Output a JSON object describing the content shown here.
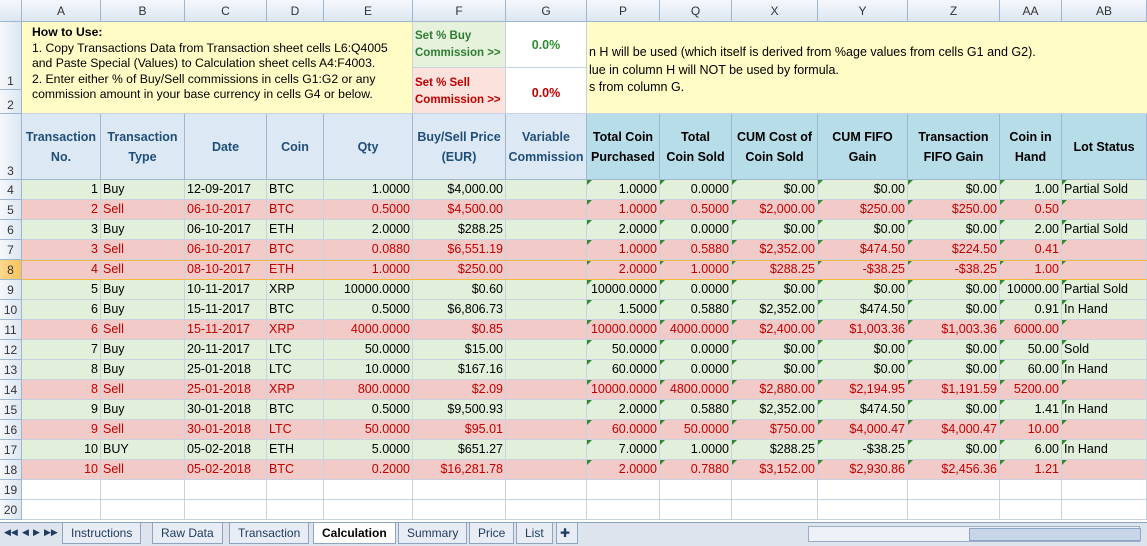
{
  "columns": [
    "A",
    "B",
    "C",
    "D",
    "E",
    "F",
    "G",
    "P",
    "Q",
    "X",
    "Y",
    "Z",
    "AA",
    "AB"
  ],
  "row_numbers": [
    "1",
    "2",
    "3",
    "4",
    "5",
    "6",
    "7",
    "8",
    "9",
    "10",
    "11",
    "12",
    "13",
    "14",
    "15",
    "16",
    "17",
    "18",
    "19",
    "20"
  ],
  "selected_row": "8",
  "instructions": {
    "title": "How to Use:",
    "line1": "1. Copy Transactions Data from Transaction sheet cells L6:Q4005",
    "line2": "and Paste Special (Values) to Calculation sheet cells A4:F4003.",
    "line3": "2. Enter either % of Buy/Sell commissions in cells G1:G2 or any",
    "line4": "commission amount in your base currency in cells G4 or below."
  },
  "commission": {
    "buy_label_1": "Set % Buy",
    "buy_label_2": "Commission >>",
    "buy_value": "0.0%",
    "sell_label_1": "Set % Sell",
    "sell_label_2": "Commission >>",
    "sell_value": "0.0%"
  },
  "note": {
    "line1": "n H will be used (which itself is derived from %age values from cells G1 and G2).",
    "line2": "lue in column H will NOT be used by formula.",
    "line3": "s from column G."
  },
  "headers": [
    [
      "Transaction",
      "No."
    ],
    [
      "Transaction",
      "Type"
    ],
    [
      "Date",
      ""
    ],
    [
      "Coin",
      ""
    ],
    [
      "Qty",
      ""
    ],
    [
      "Buy/Sell Price",
      "(EUR)"
    ],
    [
      "Variable",
      "Commission"
    ],
    [
      "Total Coin",
      "Purchased"
    ],
    [
      "Total",
      "Coin Sold"
    ],
    [
      "CUM Cost of",
      "Coin Sold"
    ],
    [
      "CUM FIFO",
      "Gain"
    ],
    [
      "Transaction",
      "FIFO Gain"
    ],
    [
      "Coin in",
      "Hand"
    ],
    [
      "Lot Status",
      ""
    ]
  ],
  "rows": [
    {
      "type": "buy",
      "cells": [
        "1",
        "Buy",
        "12-09-2017",
        "BTC",
        "1.0000",
        "$4,000.00",
        "",
        "1.0000",
        "0.0000",
        "$0.00",
        "$0.00",
        "$0.00",
        "1.00",
        "Partial Sold"
      ]
    },
    {
      "type": "sell",
      "cells": [
        "2",
        "Sell",
        "06-10-2017",
        "BTC",
        "0.5000",
        "$4,500.00",
        "",
        "1.0000",
        "0.5000",
        "$2,000.00",
        "$250.00",
        "$250.00",
        "0.50",
        ""
      ]
    },
    {
      "type": "buy",
      "cells": [
        "3",
        "Buy",
        "06-10-2017",
        "ETH",
        "2.0000",
        "$288.25",
        "",
        "2.0000",
        "0.0000",
        "$0.00",
        "$0.00",
        "$0.00",
        "2.00",
        "Partial Sold"
      ]
    },
    {
      "type": "sell",
      "cells": [
        "3",
        "Sell",
        "06-10-2017",
        "BTC",
        "0.0880",
        "$6,551.19",
        "",
        "1.0000",
        "0.5880",
        "$2,352.00",
        "$474.50",
        "$224.50",
        "0.41",
        ""
      ]
    },
    {
      "type": "sell",
      "cells": [
        "4",
        "Sell",
        "08-10-2017",
        "ETH",
        "1.0000",
        "$250.00",
        "",
        "2.0000",
        "1.0000",
        "$288.25",
        "-$38.25",
        "-$38.25",
        "1.00",
        ""
      ]
    },
    {
      "type": "buy",
      "cells": [
        "5",
        "Buy",
        "10-11-2017",
        "XRP",
        "10000.0000",
        "$0.60",
        "",
        "10000.0000",
        "0.0000",
        "$0.00",
        "$0.00",
        "$0.00",
        "10000.00",
        "Partial Sold"
      ]
    },
    {
      "type": "buy",
      "cells": [
        "6",
        "Buy",
        "15-11-2017",
        "BTC",
        "0.5000",
        "$6,806.73",
        "",
        "1.5000",
        "0.5880",
        "$2,352.00",
        "$474.50",
        "$0.00",
        "0.91",
        "In Hand"
      ]
    },
    {
      "type": "sell",
      "cells": [
        "6",
        "Sell",
        "15-11-2017",
        "XRP",
        "4000.0000",
        "$0.85",
        "",
        "10000.0000",
        "4000.0000",
        "$2,400.00",
        "$1,003.36",
        "$1,003.36",
        "6000.00",
        ""
      ]
    },
    {
      "type": "buy",
      "cells": [
        "7",
        "Buy",
        "20-11-2017",
        "LTC",
        "50.0000",
        "$15.00",
        "",
        "50.0000",
        "0.0000",
        "$0.00",
        "$0.00",
        "$0.00",
        "50.00",
        "Sold"
      ]
    },
    {
      "type": "buy",
      "cells": [
        "8",
        "Buy",
        "25-01-2018",
        "LTC",
        "10.0000",
        "$167.16",
        "",
        "60.0000",
        "0.0000",
        "$0.00",
        "$0.00",
        "$0.00",
        "60.00",
        "In Hand"
      ]
    },
    {
      "type": "sell",
      "cells": [
        "8",
        "Sell",
        "25-01-2018",
        "XRP",
        "800.0000",
        "$2.09",
        "",
        "10000.0000",
        "4800.0000",
        "$2,880.00",
        "$2,194.95",
        "$1,191.59",
        "5200.00",
        ""
      ]
    },
    {
      "type": "buy",
      "cells": [
        "9",
        "Buy",
        "30-01-2018",
        "BTC",
        "0.5000",
        "$9,500.93",
        "",
        "2.0000",
        "0.5880",
        "$2,352.00",
        "$474.50",
        "$0.00",
        "1.41",
        "In Hand"
      ]
    },
    {
      "type": "sell",
      "cells": [
        "9",
        "Sell",
        "30-01-2018",
        "LTC",
        "50.0000",
        "$95.01",
        "",
        "60.0000",
        "50.0000",
        "$750.00",
        "$4,000.47",
        "$4,000.47",
        "10.00",
        ""
      ]
    },
    {
      "type": "buy",
      "cells": [
        "10",
        "BUY",
        "05-02-2018",
        "ETH",
        "5.0000",
        "$651.27",
        "",
        "7.0000",
        "1.0000",
        "$288.25",
        "-$38.25",
        "$0.00",
        "6.00",
        "In Hand"
      ]
    },
    {
      "type": "sell",
      "cells": [
        "10",
        "Sell",
        "05-02-2018",
        "BTC",
        "0.2000",
        "$16,281.78",
        "",
        "2.0000",
        "0.7880",
        "$3,152.00",
        "$2,930.86",
        "$2,456.36",
        "1.21",
        ""
      ]
    }
  ],
  "tabs": [
    "Instructions",
    "Raw Data",
    "Transaction",
    "Calculation",
    "Summary",
    "Price",
    "List"
  ],
  "active_tab": "Calculation",
  "colors": {
    "buy_row": "#e2efda",
    "sell_row": "#f2cbc8",
    "header_fill": "#dde8f5",
    "computed_header_fill": "#b7dde8",
    "instruction_fill": "#fffcc6"
  }
}
